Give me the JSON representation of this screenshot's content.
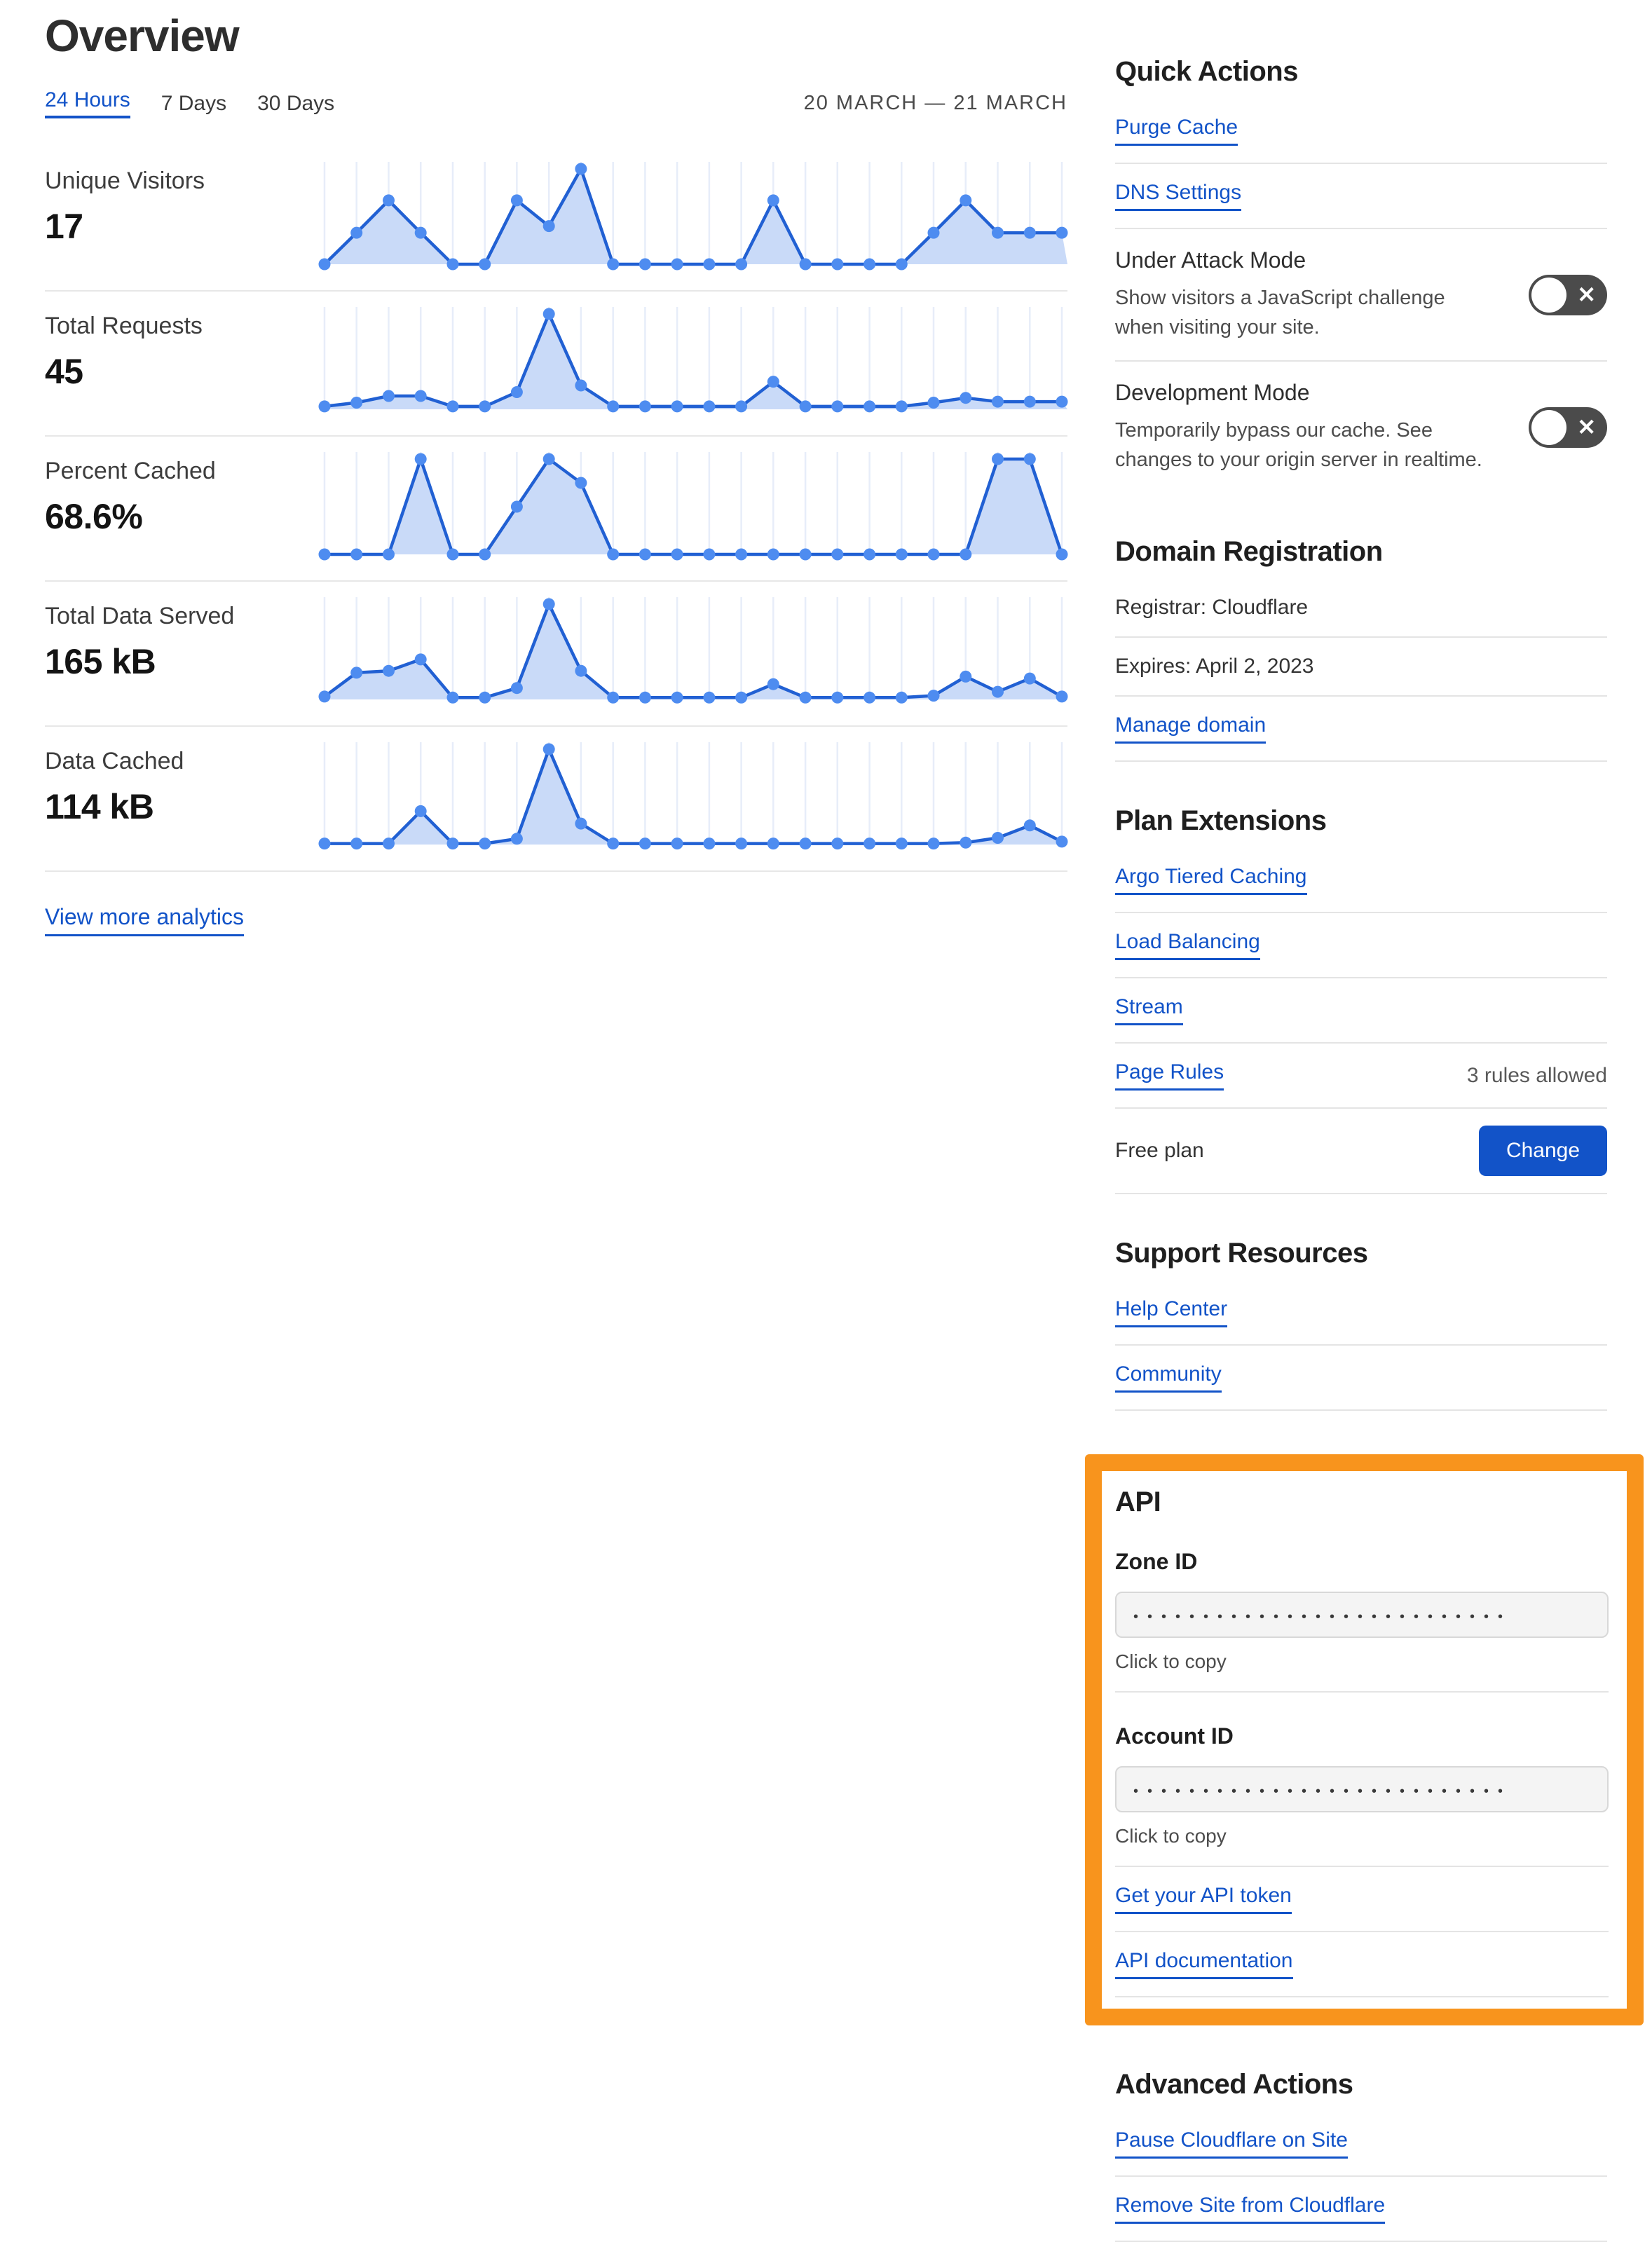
{
  "colors": {
    "accent_blue": "#1253c8",
    "highlight_orange": "#f8941d",
    "chart_line": "#2160d3",
    "chart_dot": "#4e8cf0",
    "chart_fill": "#c9daf8",
    "chart_grid": "#e7edf9",
    "toggle_bg": "#4b4b4b"
  },
  "page": {
    "title": "Overview"
  },
  "time_tabs": {
    "items": [
      "24 Hours",
      "7 Days",
      "30 Days"
    ],
    "active": "24 Hours",
    "date_range": "20 MARCH — 21 MARCH"
  },
  "analytics": {
    "metrics": [
      {
        "label": "Unique Visitors",
        "value": "17"
      },
      {
        "label": "Total Requests",
        "value": "45"
      },
      {
        "label": "Percent Cached",
        "value": "68.6%"
      },
      {
        "label": "Total Data Served",
        "value": "165 kB"
      },
      {
        "label": "Data Cached",
        "value": "114 kB"
      }
    ],
    "view_more": "View more analytics"
  },
  "chart_data": [
    {
      "type": "area",
      "title": "Unique Visitors",
      "total": "17",
      "x": "24 hourly points, 20 March – 21 March",
      "ylim": [
        0,
        100
      ],
      "grid": "vertical",
      "legend": "none",
      "y_relative_heights": [
        0,
        33,
        67,
        33,
        0,
        0,
        67,
        40,
        100,
        0,
        0,
        0,
        0,
        0,
        67,
        0,
        0,
        0,
        0,
        33,
        67,
        33,
        33,
        33
      ]
    },
    {
      "type": "area",
      "title": "Total Requests",
      "total": "45",
      "x": "24 hourly points, 20 March – 21 March",
      "ylim": [
        0,
        100
      ],
      "grid": "vertical",
      "legend": "none",
      "y_relative_heights": [
        3,
        7,
        14,
        14,
        3,
        3,
        18,
        100,
        25,
        3,
        3,
        3,
        3,
        3,
        29,
        3,
        3,
        3,
        3,
        7,
        12,
        8,
        8,
        8
      ]
    },
    {
      "type": "area",
      "title": "Percent Cached",
      "total": "68.6%",
      "x": "24 hourly points, 20 March – 21 March",
      "ylim": [
        0,
        100
      ],
      "grid": "vertical",
      "legend": "none",
      "y_relative_heights": [
        0,
        0,
        0,
        100,
        0,
        0,
        50,
        100,
        75,
        0,
        0,
        0,
        0,
        0,
        0,
        0,
        0,
        0,
        0,
        0,
        0,
        100,
        100,
        0
      ]
    },
    {
      "type": "area",
      "title": "Total Data Served",
      "total": "165 kB",
      "x": "24 hourly points, 20 March – 21 March",
      "ylim": [
        0,
        100
      ],
      "grid": "vertical",
      "legend": "none",
      "y_relative_heights": [
        3,
        28,
        30,
        42,
        2,
        2,
        12,
        100,
        30,
        2,
        2,
        2,
        2,
        2,
        16,
        2,
        2,
        2,
        2,
        4,
        24,
        8,
        22,
        3
      ]
    },
    {
      "type": "area",
      "title": "Data Cached",
      "total": "114 kB",
      "x": "24 hourly points, 20 March – 21 March",
      "ylim": [
        0,
        100
      ],
      "grid": "vertical",
      "legend": "none",
      "y_relative_heights": [
        1,
        1,
        1,
        35,
        1,
        1,
        6,
        100,
        22,
        1,
        1,
        1,
        1,
        1,
        1,
        1,
        1,
        1,
        1,
        1,
        2,
        7,
        20,
        3
      ]
    }
  ],
  "quick_actions": {
    "heading": "Quick Actions",
    "links": [
      "Purge Cache",
      "DNS Settings"
    ],
    "toggles": [
      {
        "label": "Under Attack Mode",
        "description": "Show visitors a JavaScript challenge when visiting your site.",
        "state": "off"
      },
      {
        "label": "Development Mode",
        "description": "Temporarily bypass our cache. See changes to your origin server in realtime.",
        "state": "off"
      }
    ]
  },
  "domain_registration": {
    "heading": "Domain Registration",
    "registrar": "Registrar: Cloudflare",
    "expires": "Expires: April 2, 2023",
    "manage_link": "Manage domain"
  },
  "plan_extensions": {
    "heading": "Plan Extensions",
    "links": [
      "Argo Tiered Caching",
      "Load Balancing",
      "Stream",
      "Page Rules"
    ],
    "page_rules_note": "3 rules allowed",
    "plan_label": "Free plan",
    "change_button": "Change"
  },
  "support_resources": {
    "heading": "Support Resources",
    "links": [
      "Help Center",
      "Community"
    ]
  },
  "api": {
    "heading": "API",
    "zone_id_label": "Zone ID",
    "account_id_label": "Account ID",
    "masked_value": "•••••••••••••••••••••••••••",
    "click_to_copy": "Click to copy",
    "links": [
      "Get your API token",
      "API documentation"
    ]
  },
  "advanced_actions": {
    "heading": "Advanced Actions",
    "links": [
      "Pause Cloudflare on Site",
      "Remove Site from Cloudflare"
    ]
  }
}
